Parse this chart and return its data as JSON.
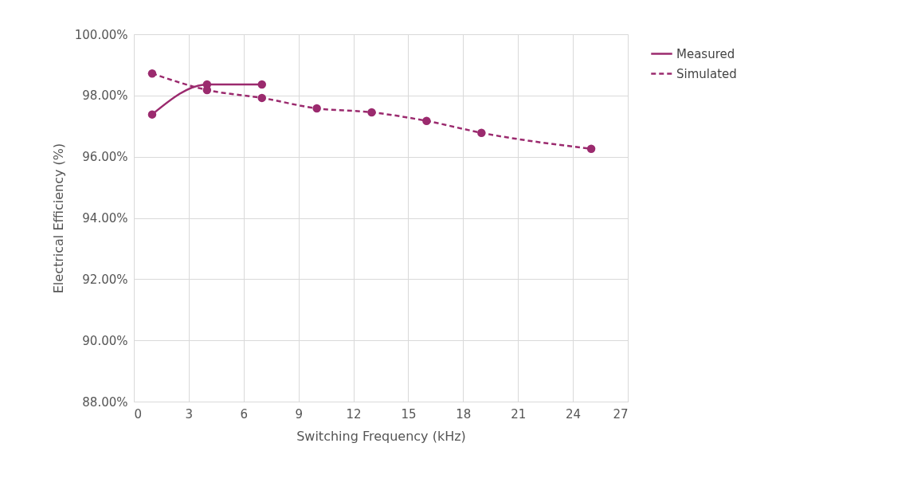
{
  "chart_data": {
    "type": "line",
    "xlabel": "Switching Frequency (kHz)",
    "ylabel": "Electrical Efficiency (%)",
    "series": [
      {
        "name": "Measured",
        "color": "#9b2a6e",
        "line_style": "solid",
        "x": [
          1,
          4,
          7
        ],
        "values": [
          97.38,
          98.36,
          98.36
        ]
      },
      {
        "name": "Simulated",
        "color": "#9b2a6e",
        "line_style": "dashed",
        "x": [
          1,
          4,
          7,
          10,
          13,
          16,
          19,
          25
        ],
        "values": [
          98.72,
          98.18,
          97.92,
          97.58,
          97.45,
          97.17,
          96.78,
          96.26
        ]
      }
    ],
    "xlim": [
      0,
      27
    ],
    "xticks": [
      0,
      3,
      6,
      9,
      12,
      15,
      18,
      21,
      24,
      27
    ],
    "ylim": [
      88,
      100
    ],
    "yticks": [
      {
        "value": 88,
        "label": "88.00%"
      },
      {
        "value": 90,
        "label": "90.00%"
      },
      {
        "value": 92,
        "label": "92.00%"
      },
      {
        "value": 94,
        "label": "94.00%"
      },
      {
        "value": 96,
        "label": "96.00%"
      },
      {
        "value": 98,
        "label": "98.00%"
      },
      {
        "value": 100,
        "label": "100.00%"
      }
    ],
    "grid": true,
    "legend": "right",
    "marker": "circle"
  }
}
